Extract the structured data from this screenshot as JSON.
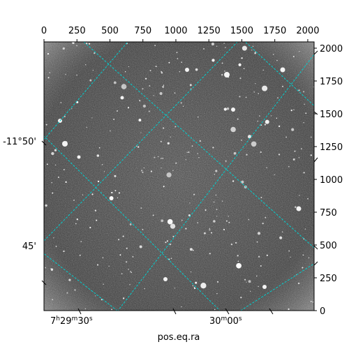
{
  "figure": {
    "xlabel": "pos.eq.ra",
    "ylabel": "",
    "pixel_axes": {
      "x_range": [
        0,
        2048
      ],
      "y_range": [
        0,
        2048
      ],
      "x_ticks": [
        0,
        250,
        500,
        750,
        1000,
        1250,
        1500,
        1750,
        2000
      ],
      "x_tick_labels": [
        "0",
        "250",
        "500",
        "750",
        "1000",
        "1250",
        "1500",
        "1750",
        "2000"
      ],
      "y_ticks": [
        0,
        250,
        500,
        750,
        1000,
        1250,
        1500,
        1750,
        2000
      ],
      "y_tick_labels": [
        "0",
        "250",
        "500",
        "750",
        "1000",
        "1250",
        "1500",
        "1750",
        "2000"
      ]
    },
    "world_axes": {
      "ra_labels": [
        {
          "h": "7",
          "m": "29",
          "s": "30",
          "text": "7h29m30s"
        },
        {
          "m": "30",
          "s": "00",
          "text": "30m00s"
        }
      ],
      "dec_labels": [
        "-11°50'",
        "45'"
      ]
    },
    "colors": {
      "grid": "#00d0d0",
      "background": "#ffffff",
      "image_base": "#555555"
    }
  }
}
